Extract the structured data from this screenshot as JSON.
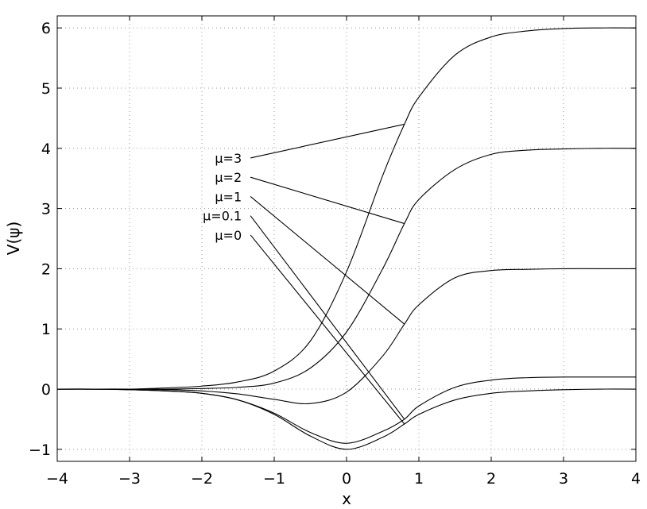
{
  "chart_data": {
    "type": "line",
    "title": "",
    "xlabel": "x",
    "ylabel": "V(ψ)",
    "xlim": [
      -4,
      4
    ],
    "ylim": [
      -1.2,
      6.2
    ],
    "xticks": [
      -4,
      -3,
      -2,
      -1,
      0,
      1,
      2,
      3,
      4
    ],
    "xtick_labels": [
      "−4",
      "−3",
      "−2",
      "−1",
      "0",
      "1",
      "2",
      "3",
      "4"
    ],
    "yticks": [
      -1,
      0,
      1,
      2,
      3,
      4,
      5,
      6
    ],
    "ytick_labels": [
      "−1",
      "0",
      "1",
      "2",
      "3",
      "4",
      "5",
      "6"
    ],
    "grid": true,
    "series": [
      {
        "name": "μ=3",
        "x": [
          -4,
          -3.5,
          -3,
          -2.5,
          -2,
          -1.5,
          -1,
          -0.5,
          0,
          0.5,
          0.8,
          1,
          1.5,
          2,
          2.5,
          3,
          3.5,
          4
        ],
        "values": [
          0,
          0,
          0,
          0.02,
          0.05,
          0.12,
          0.3,
          0.8,
          1.95,
          3.55,
          4.4,
          4.85,
          5.55,
          5.85,
          5.95,
          5.99,
          6.0,
          6.0
        ]
      },
      {
        "name": "μ=2",
        "x": [
          -4,
          -3.5,
          -3,
          -2.5,
          -2,
          -1.5,
          -1,
          -0.5,
          0,
          0.5,
          0.8,
          1,
          1.5,
          2,
          2.5,
          3,
          3.5,
          4
        ],
        "values": [
          0,
          0,
          0,
          0,
          0.01,
          0.03,
          0.1,
          0.35,
          0.95,
          2.0,
          2.75,
          3.15,
          3.65,
          3.9,
          3.97,
          3.99,
          4.0,
          4.0
        ]
      },
      {
        "name": "μ=1",
        "x": [
          -4,
          -3.5,
          -3,
          -2.5,
          -2,
          -1.5,
          -1,
          -0.5,
          0,
          0.5,
          0.8,
          1,
          1.5,
          2,
          2.5,
          3,
          3.5,
          4
        ],
        "values": [
          0,
          0,
          0,
          -0.01,
          -0.03,
          -0.08,
          -0.17,
          -0.24,
          -0.05,
          0.55,
          1.08,
          1.4,
          1.85,
          1.97,
          1.99,
          2.0,
          2.0,
          2.0
        ]
      },
      {
        "name": "μ=0.1",
        "x": [
          -4,
          -3.5,
          -3,
          -2.5,
          -2,
          -1.5,
          -1,
          -0.5,
          0,
          0.5,
          0.8,
          1,
          1.5,
          2,
          2.5,
          3,
          3.5,
          4
        ],
        "values": [
          0,
          0,
          -0.01,
          -0.03,
          -0.07,
          -0.18,
          -0.4,
          -0.72,
          -0.9,
          -0.7,
          -0.5,
          -0.28,
          0.03,
          0.15,
          0.19,
          0.2,
          0.2,
          0.2
        ]
      },
      {
        "name": "μ=0",
        "x": [
          -4,
          -3.5,
          -3,
          -2.5,
          -2,
          -1.5,
          -1,
          -0.5,
          0,
          0.5,
          0.8,
          1,
          1.5,
          2,
          2.5,
          3,
          3.5,
          4
        ],
        "values": [
          0,
          0,
          -0.01,
          -0.03,
          -0.07,
          -0.18,
          -0.42,
          -0.78,
          -1.0,
          -0.8,
          -0.58,
          -0.42,
          -0.18,
          -0.07,
          -0.03,
          -0.01,
          0,
          0
        ]
      }
    ],
    "annotations": [
      {
        "text": "μ=3",
        "label_at": [
          -1.35,
          3.84
        ],
        "arrow_to": [
          0.8,
          4.4
        ]
      },
      {
        "text": "μ=2",
        "label_at": [
          -1.35,
          3.52
        ],
        "arrow_to": [
          0.8,
          2.75
        ]
      },
      {
        "text": "μ=1",
        "label_at": [
          -1.35,
          3.2
        ],
        "arrow_to": [
          0.8,
          1.08
        ]
      },
      {
        "text": "μ=0.1",
        "label_at": [
          -1.35,
          2.88
        ],
        "arrow_to": [
          0.8,
          -0.5
        ]
      },
      {
        "text": "μ=0",
        "label_at": [
          -1.35,
          2.56
        ],
        "arrow_to": [
          0.8,
          -0.58
        ]
      }
    ]
  }
}
